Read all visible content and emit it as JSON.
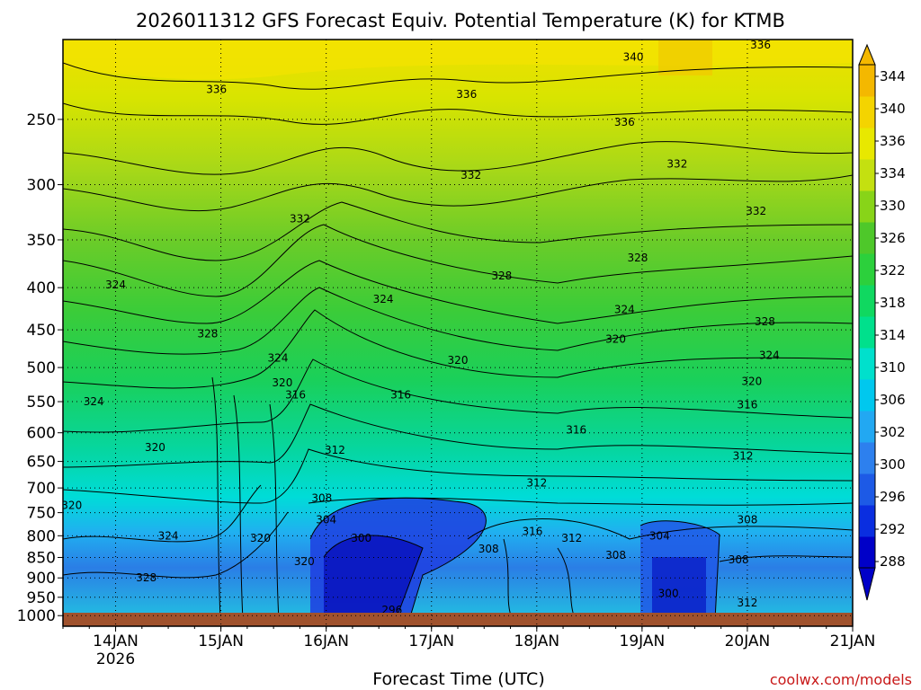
{
  "chart_data": {
    "type": "heatmap",
    "title": "2026011312 GFS Forecast Equiv. Potential Temperature (K) for KTMB",
    "xlabel": "Forecast Time (UTC)",
    "credit": "coolwx.com/models",
    "x_ticks": [
      "14JAN",
      "15JAN",
      "16JAN",
      "17JAN",
      "18JAN",
      "19JAN",
      "20JAN",
      "21JAN"
    ],
    "x_year": "2026",
    "y_scale": "log",
    "y_ticks": [
      250,
      300,
      350,
      400,
      450,
      500,
      550,
      600,
      650,
      700,
      750,
      800,
      850,
      900,
      950,
      1000
    ],
    "ylim": [
      1030,
      200
    ],
    "xlim": [
      "2026-01-13T12",
      "2026-01-21T00"
    ],
    "colorbar": {
      "levels": [
        288,
        292,
        296,
        300,
        302,
        306,
        310,
        314,
        318,
        322,
        326,
        330,
        334,
        336,
        340,
        344
      ],
      "label_levels": [
        "344",
        "340",
        "336",
        "334",
        "330",
        "326",
        "322",
        "318",
        "314",
        "310",
        "306",
        "302",
        "300",
        "296",
        "292",
        "288"
      ],
      "colors": [
        "#0000c8",
        "#0a2ee0",
        "#1d5ae6",
        "#2d80ee",
        "#22a8f2",
        "#00c8ee",
        "#00e0cc",
        "#00e08c",
        "#10d860",
        "#2cd03c",
        "#4ec82a",
        "#88d418",
        "#c4e010",
        "#e8e800",
        "#f4d400",
        "#f4b800"
      ]
    },
    "contour_labels": [
      {
        "value": "336",
        "time": "2026-01-14T23",
        "p": 230
      },
      {
        "value": "336",
        "time": "2026-01-17T08",
        "p": 233
      },
      {
        "value": "340",
        "time": "2026-01-18T22",
        "p": 210
      },
      {
        "value": "336",
        "time": "2026-01-20T03",
        "p": 203
      },
      {
        "value": "336",
        "time": "2026-01-18T20",
        "p": 252
      },
      {
        "value": "332",
        "time": "2026-01-19T08",
        "p": 283
      },
      {
        "value": "332",
        "time": "2026-01-17T09",
        "p": 292
      },
      {
        "value": "332",
        "time": "2026-01-20T02",
        "p": 323
      },
      {
        "value": "332",
        "time": "2026-01-15T18",
        "p": 330
      },
      {
        "value": "328",
        "time": "2026-01-18T23",
        "p": 368
      },
      {
        "value": "328",
        "time": "2026-01-17T16",
        "p": 387
      },
      {
        "value": "324",
        "time": "2026-01-14T00",
        "p": 397
      },
      {
        "value": "324",
        "time": "2026-01-16T13",
        "p": 413
      },
      {
        "value": "324",
        "time": "2026-01-18T20",
        "p": 425
      },
      {
        "value": "328",
        "time": "2026-01-14T21",
        "p": 455
      },
      {
        "value": "328",
        "time": "2026-01-20T04",
        "p": 440
      },
      {
        "value": "320",
        "time": "2026-01-18T18",
        "p": 462
      },
      {
        "value": "324",
        "time": "2026-01-15T13",
        "p": 487
      },
      {
        "value": "324",
        "time": "2026-01-20T05",
        "p": 483
      },
      {
        "value": "320",
        "time": "2026-01-17T06",
        "p": 490
      },
      {
        "value": "320",
        "time": "2026-01-15T14",
        "p": 522
      },
      {
        "value": "320",
        "time": "2026-01-20T01",
        "p": 520
      },
      {
        "value": "316",
        "time": "2026-01-15T17",
        "p": 540
      },
      {
        "value": "316",
        "time": "2026-01-16T17",
        "p": 540
      },
      {
        "value": "324",
        "time": "2026-01-13T19",
        "p": 550
      },
      {
        "value": "316",
        "time": "2026-01-20T00",
        "p": 555
      },
      {
        "value": "316",
        "time": "2026-01-18T09",
        "p": 595
      },
      {
        "value": "320",
        "time": "2026-01-14T09",
        "p": 625
      },
      {
        "value": "312",
        "time": "2026-01-16T02",
        "p": 630
      },
      {
        "value": "312",
        "time": "2026-01-19T23",
        "p": 640
      },
      {
        "value": "312",
        "time": "2026-01-18T00",
        "p": 690
      },
      {
        "value": "308",
        "time": "2026-01-15T23",
        "p": 720
      },
      {
        "value": "320",
        "time": "2026-01-13T14",
        "p": 735
      },
      {
        "value": "304",
        "time": "2026-01-16T00",
        "p": 765
      },
      {
        "value": "308",
        "time": "2026-01-20T00",
        "p": 765
      },
      {
        "value": "316",
        "time": "2026-01-17T23",
        "p": 790
      },
      {
        "value": "324",
        "time": "2026-01-14T12",
        "p": 800
      },
      {
        "value": "300",
        "time": "2026-01-16T08",
        "p": 805
      },
      {
        "value": "304",
        "time": "2026-01-19T04",
        "p": 800
      },
      {
        "value": "320",
        "time": "2026-01-15T09",
        "p": 805
      },
      {
        "value": "312",
        "time": "2026-01-18T08",
        "p": 805
      },
      {
        "value": "308",
        "time": "2026-01-17T13",
        "p": 830
      },
      {
        "value": "308",
        "time": "2026-01-18T18",
        "p": 845
      },
      {
        "value": "308",
        "time": "2026-01-19T22",
        "p": 855
      },
      {
        "value": "320",
        "time": "2026-01-15T19",
        "p": 860
      },
      {
        "value": "328",
        "time": "2026-01-14T07",
        "p": 900
      },
      {
        "value": "300",
        "time": "2026-01-19T06",
        "p": 940
      },
      {
        "value": "312",
        "time": "2026-01-20T00",
        "p": 965
      },
      {
        "value": "296",
        "time": "2026-01-16T15",
        "p": 985
      }
    ]
  }
}
